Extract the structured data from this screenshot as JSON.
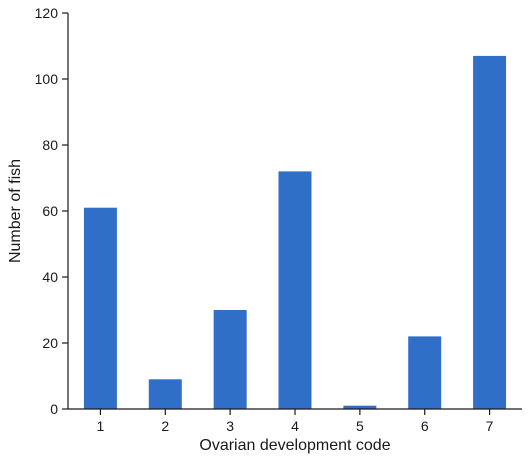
{
  "chart_data": {
    "type": "bar",
    "categories": [
      "1",
      "2",
      "3",
      "4",
      "5",
      "6",
      "7"
    ],
    "values": [
      61,
      9,
      30,
      72,
      1,
      22,
      107
    ],
    "xlabel": "Ovarian development code",
    "ylabel": "Number of fish",
    "ylim": [
      0,
      120
    ],
    "yticks": [
      "0",
      "20",
      "40",
      "60",
      "80",
      "100",
      "120"
    ],
    "grid": false,
    "bar_color": "#2f6fc8"
  }
}
